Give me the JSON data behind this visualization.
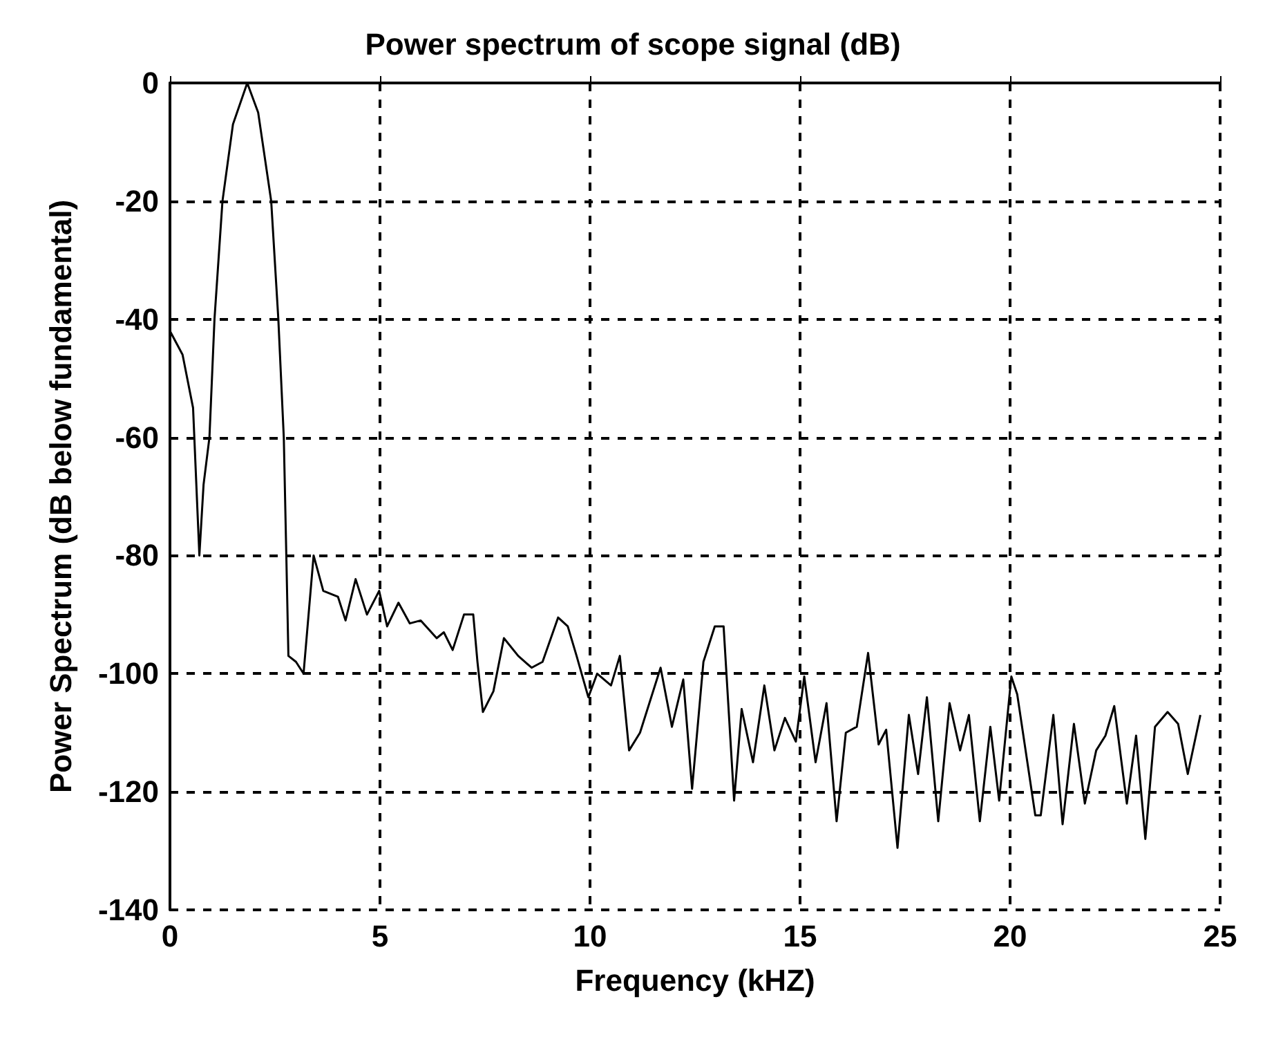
{
  "chart_data": {
    "type": "line",
    "title": "Power spectrum of scope signal (dB)",
    "xlabel": "Frequency (kHZ)",
    "ylabel": "Power Spectrum (dB below fundamental)",
    "x": [
      0,
      0.3,
      0.55,
      0.7,
      0.8,
      0.94,
      1.06,
      1.25,
      1.5,
      1.84,
      2.1,
      2.41,
      2.58,
      2.71,
      2.77,
      2.82,
      3.0,
      3.18,
      3.3,
      3.42,
      3.65,
      4.0,
      4.18,
      4.42,
      4.69,
      4.98,
      5.17,
      5.44,
      5.71,
      5.97,
      6.35,
      6.52,
      6.73,
      7.0,
      7.22,
      7.32,
      7.45,
      7.7,
      7.95,
      8.29,
      8.61,
      8.87,
      9.24,
      9.47,
      9.68,
      9.96,
      10.17,
      10.5,
      10.71,
      10.93,
      11.19,
      11.68,
      11.95,
      12.22,
      12.43,
      12.7,
      12.97,
      13.18,
      13.43,
      13.61,
      13.88,
      14.15,
      14.39,
      14.64,
      14.9,
      15.1,
      15.37,
      15.63,
      15.87,
      16.09,
      16.35,
      16.62,
      16.87,
      17.05,
      17.32,
      17.59,
      17.81,
      18.02,
      18.29,
      18.56,
      18.81,
      19.02,
      19.28,
      19.53,
      19.74,
      20.03,
      20.17,
      20.6,
      20.73,
      21.03,
      21.25,
      21.52,
      21.78,
      22.05,
      22.27,
      22.48,
      22.78,
      23.0,
      23.22,
      23.45,
      23.75,
      24.0,
      24.23,
      24.53
    ],
    "series": [
      {
        "color": "#000000",
        "values": [
          -42,
          -46,
          -55,
          -80,
          -68,
          -60,
          -40,
          -20,
          -7,
          0,
          -5,
          -20,
          -40,
          -60,
          -80,
          -97,
          -98,
          -100,
          -90,
          -80,
          -86,
          -87,
          -91,
          -84,
          -90,
          -86,
          -92,
          -88,
          -91.5,
          -91,
          -94,
          -93,
          -96,
          -90,
          -90,
          -98,
          -106.5,
          -103,
          -94,
          -97,
          -99,
          -98,
          -90.5,
          -92,
          -97,
          -104,
          -100,
          -102,
          -97,
          -113,
          -110,
          -99,
          -109,
          -101,
          -119.5,
          -98,
          -92,
          -92,
          -121.5,
          -106,
          -115,
          -102,
          -113,
          -107.5,
          -111.5,
          -100.5,
          -115,
          -105,
          -125,
          -110,
          -109,
          -96.5,
          -112,
          -109.5,
          -129.5,
          -107,
          -117,
          -104,
          -125,
          -105,
          -113,
          -107,
          -125,
          -109,
          -121.5,
          -100.5,
          -103.5,
          -124,
          -124,
          -107,
          -125.5,
          -108.5,
          -122,
          -113,
          -110.5,
          -105.5,
          -122,
          -110.5,
          -128,
          -109,
          -106.5,
          -108.5,
          -117,
          -107
        ]
      }
    ],
    "xlim": [
      0,
      25
    ],
    "xticks": [
      0,
      5,
      10,
      15,
      20,
      25
    ],
    "ylim": [
      -140,
      0
    ],
    "yticks": [
      -140,
      -120,
      -100,
      -80,
      -60,
      -40,
      -20,
      0
    ],
    "grid": true,
    "marker": "none",
    "line_style": "solid"
  }
}
